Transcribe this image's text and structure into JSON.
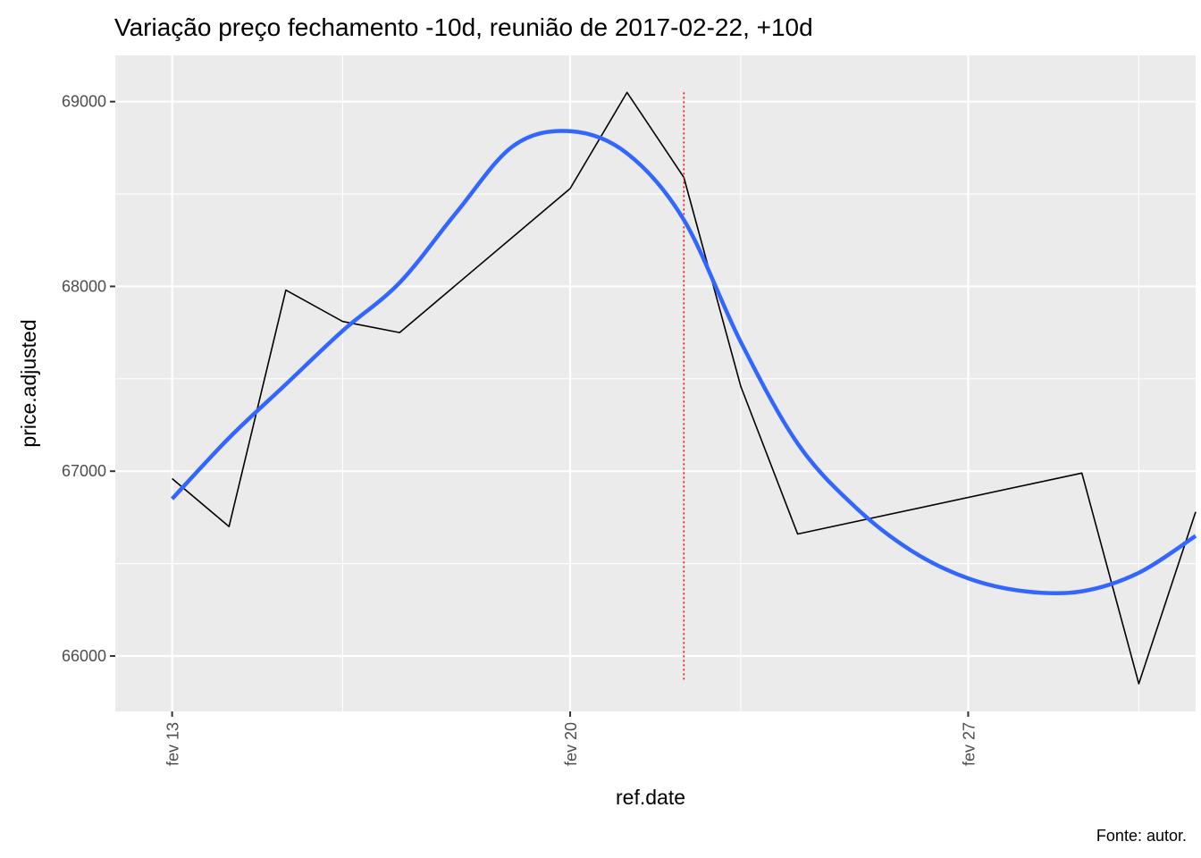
{
  "chart_data": {
    "type": "line",
    "title": "Variação preço fechamento -10d, reunião de 2017-02-22, +10d",
    "xlabel": "ref.date",
    "ylabel": "price.adjusted",
    "caption": "Fonte: autor.",
    "x_tick_labels": [
      "fev 13",
      "fev 20",
      "fev 27"
    ],
    "y_tick_labels": [
      "66000",
      "67000",
      "68000",
      "69000"
    ],
    "xlim": [
      "2017-02-12",
      "2017-03-03"
    ],
    "ylim": [
      65700,
      69250
    ],
    "grid": true,
    "panel_background": "#ebebeb",
    "grid_color": "#ffffff",
    "series": [
      {
        "color": "#000000",
        "style": "line",
        "x": [
          "2017-02-13",
          "2017-02-14",
          "2017-02-15",
          "2017-02-16",
          "2017-02-17",
          "2017-02-20",
          "2017-02-21",
          "2017-02-22",
          "2017-02-23",
          "2017-02-24",
          "2017-03-01",
          "2017-03-02",
          "2017-03-03"
        ],
        "values": [
          66960,
          66700,
          67980,
          67810,
          67750,
          68530,
          69050,
          68590,
          67460,
          66660,
          66990,
          65850,
          66780
        ]
      },
      {
        "color": "#3366ff",
        "style": "smooth",
        "x": [
          "2017-02-13",
          "2017-02-14",
          "2017-02-15",
          "2017-02-16",
          "2017-02-17",
          "2017-02-18",
          "2017-02-19",
          "2017-02-20",
          "2017-02-21",
          "2017-02-22",
          "2017-02-23",
          "2017-02-24",
          "2017-02-25",
          "2017-02-26",
          "2017-02-27",
          "2017-02-28",
          "2017-03-01",
          "2017-03-02",
          "2017-03-03"
        ],
        "values": [
          66850,
          67180,
          67470,
          67760,
          68020,
          68400,
          68760,
          68840,
          68720,
          68360,
          67700,
          67150,
          66810,
          66570,
          66420,
          66350,
          66350,
          66450,
          66650
        ]
      }
    ],
    "vline": {
      "x": "2017-02-22",
      "color": "#ff0000",
      "style": "dotted",
      "y_from": 65870,
      "y_to": 69050
    }
  }
}
